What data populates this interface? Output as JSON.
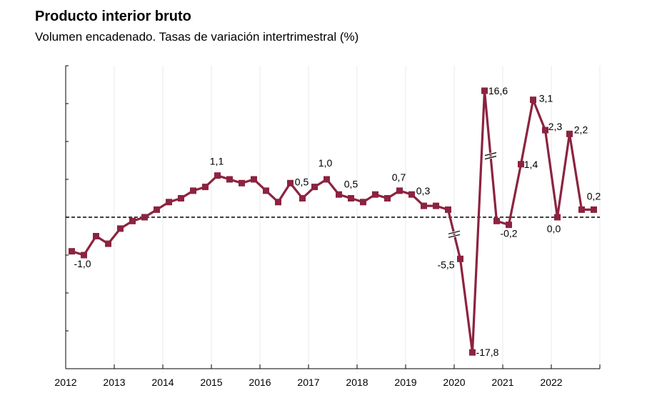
{
  "chart_data": {
    "type": "line",
    "title": "Producto interior bruto",
    "subtitle": "Volumen encadenado. Tasas de variación intertrimestral (%)",
    "xlabel": "",
    "ylabel": "",
    "x_tick_labels": [
      "2012",
      "2013",
      "2014",
      "2015",
      "2016",
      "2017",
      "2018",
      "2019",
      "2020",
      "2021",
      "2022"
    ],
    "x_frequency": "quarterly",
    "ylim": [
      -4,
      4
    ],
    "y_axis_break": true,
    "grid": "vertical",
    "reference_line": 0,
    "series": [
      {
        "color": "#8c2340",
        "values": [
          -0.9,
          -1.0,
          -0.5,
          -0.7,
          -0.3,
          -0.1,
          0.0,
          0.2,
          0.4,
          0.5,
          0.7,
          0.8,
          1.1,
          1.0,
          0.9,
          1.0,
          0.7,
          0.4,
          0.9,
          0.5,
          0.8,
          1.0,
          0.6,
          0.5,
          0.4,
          0.6,
          0.5,
          0.7,
          0.6,
          0.3,
          0.3,
          0.2,
          -5.5,
          -17.8,
          16.6,
          -0.1,
          -0.2,
          1.4,
          3.1,
          2.3,
          0.0,
          2.2,
          0.2,
          0.2
        ]
      }
    ],
    "data_labels": [
      {
        "point": 1,
        "text": "-1,0"
      },
      {
        "point": 12,
        "text": "1,1"
      },
      {
        "point": 19,
        "text": "0,5"
      },
      {
        "point": 21,
        "text": "1,0"
      },
      {
        "point": 23,
        "text": "0,5"
      },
      {
        "point": 27,
        "text": "0,7"
      },
      {
        "point": 29,
        "text": "0,3"
      },
      {
        "point": 32,
        "text": "-5,5"
      },
      {
        "point": 33,
        "text": "-17,8"
      },
      {
        "point": 34,
        "text": "16,6"
      },
      {
        "point": 36,
        "text": "-0,2"
      },
      {
        "point": 37,
        "text": "1,4"
      },
      {
        "point": 38,
        "text": "3,1"
      },
      {
        "point": 39,
        "text": "2,3"
      },
      {
        "point": 40,
        "text": "0,0"
      },
      {
        "point": 41,
        "text": "2,2"
      },
      {
        "point": 43,
        "text": "0,2"
      }
    ]
  }
}
